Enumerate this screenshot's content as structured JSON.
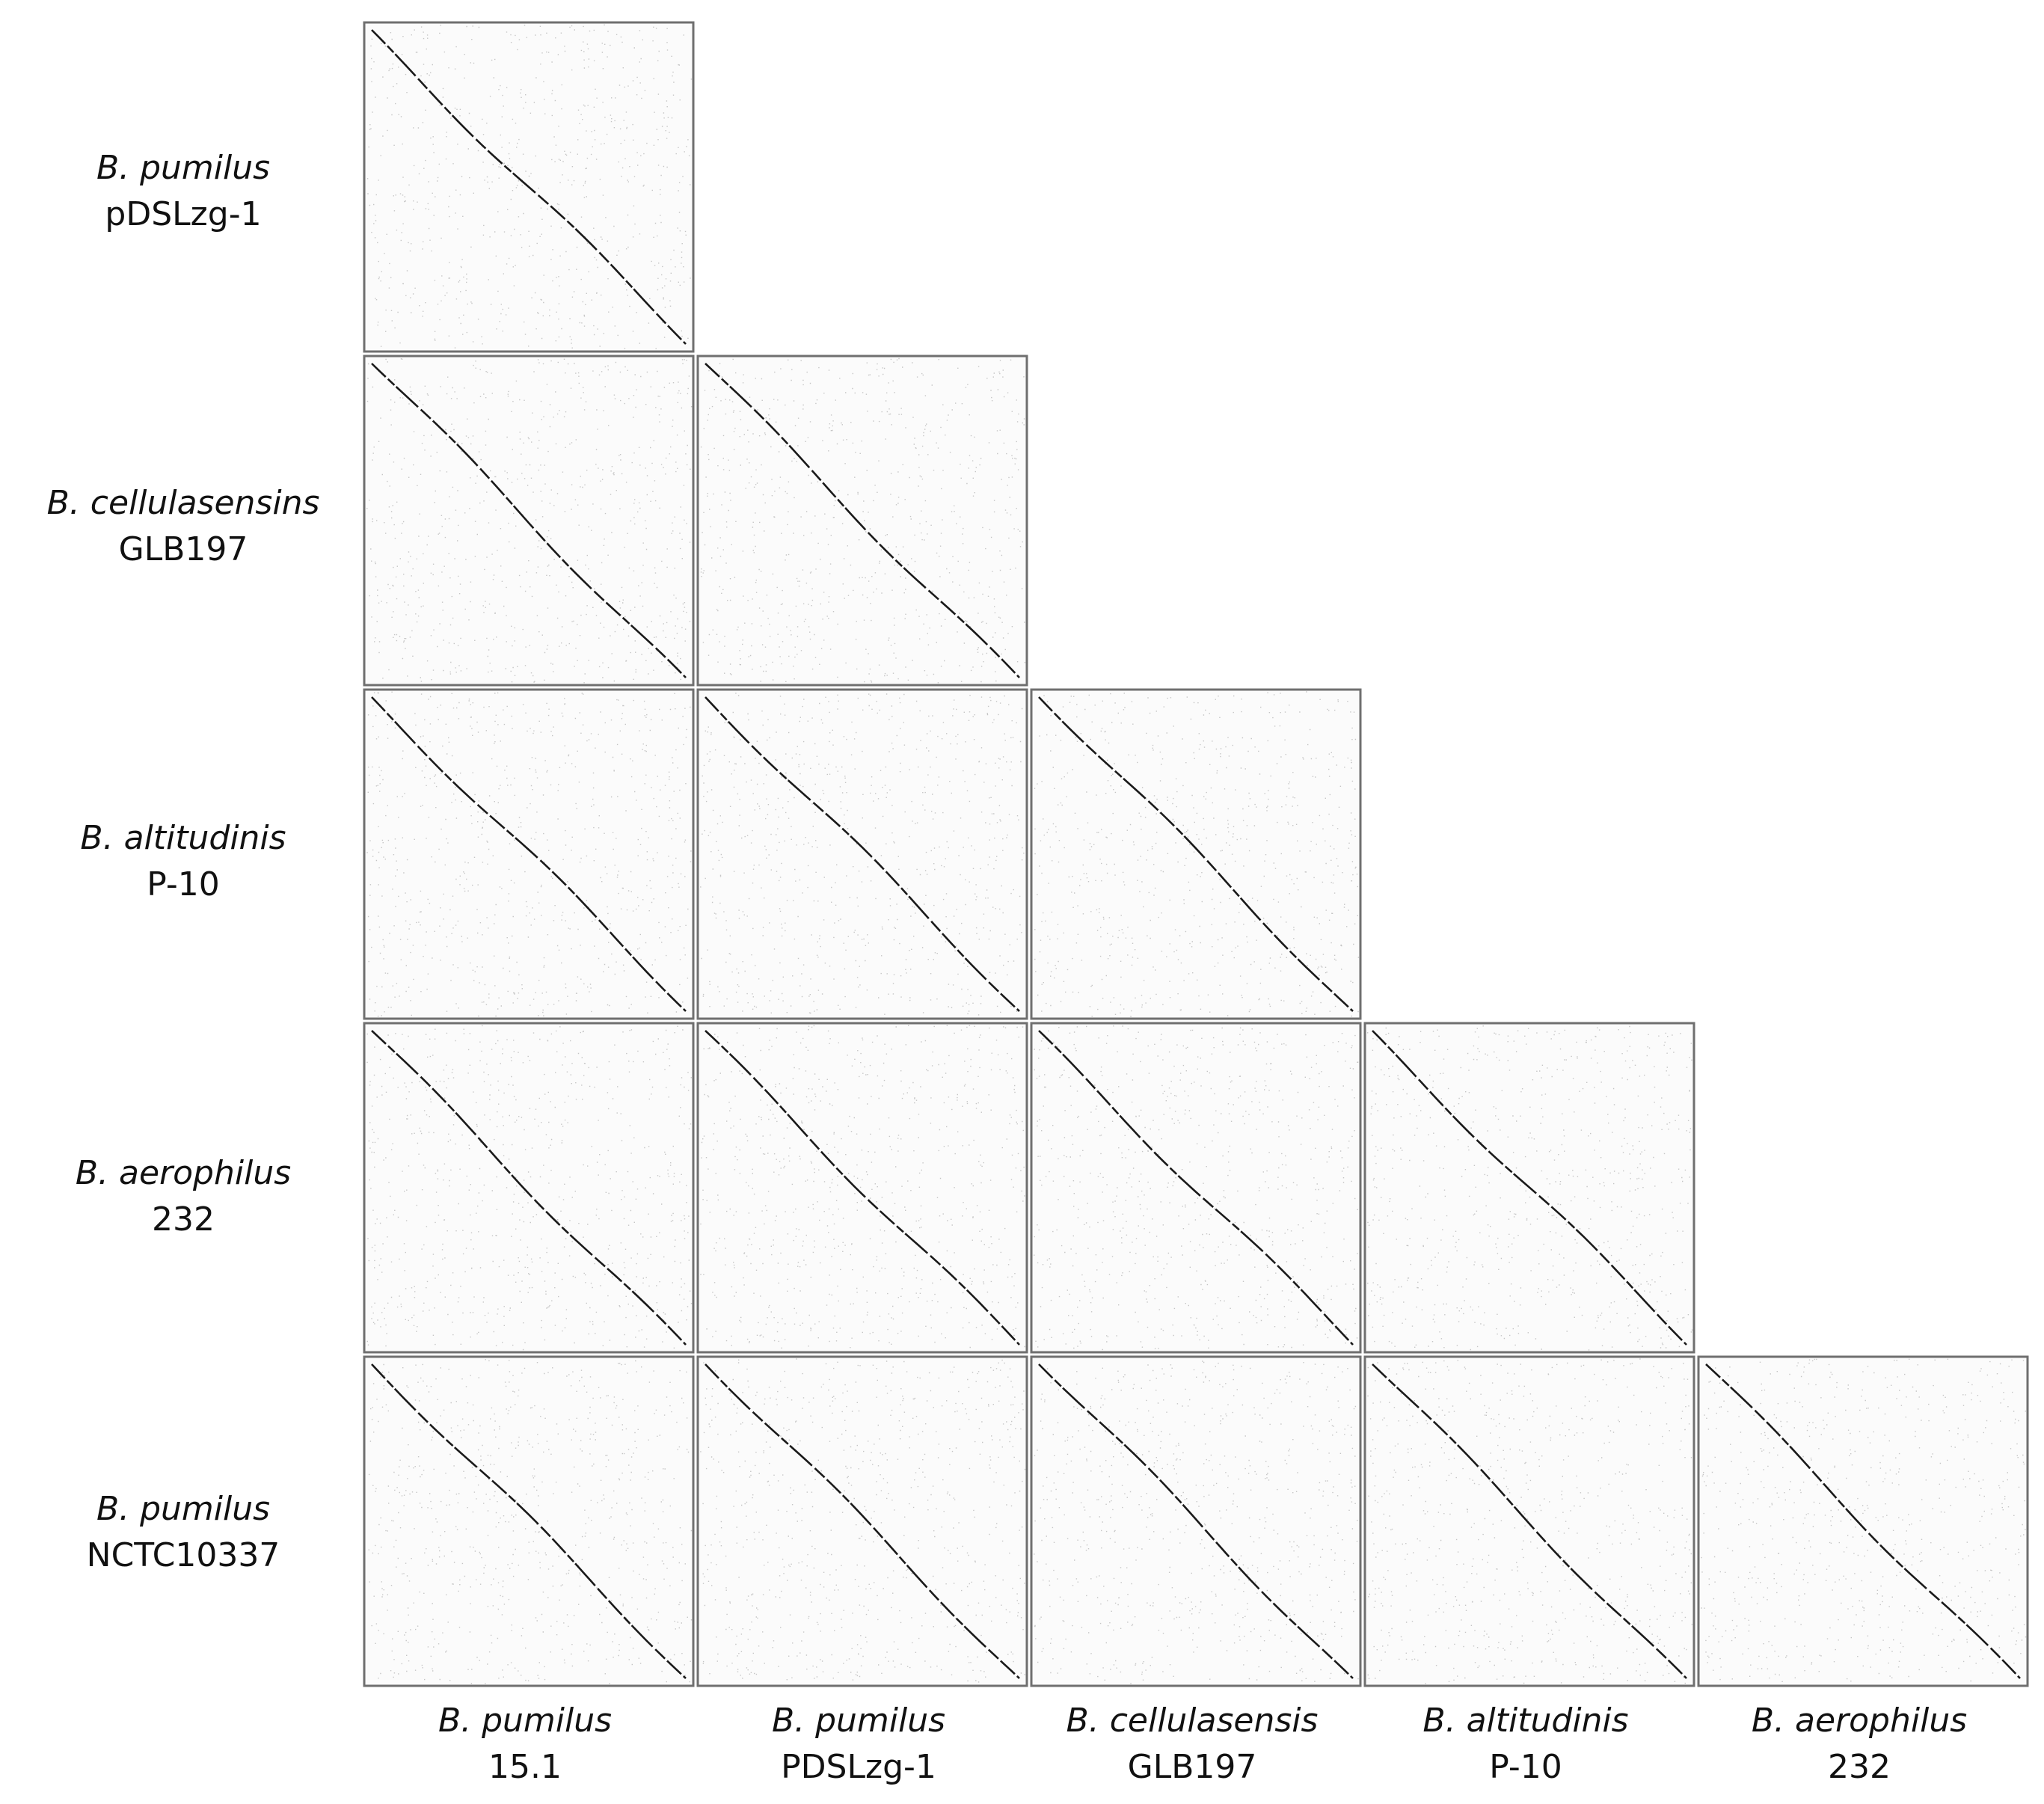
{
  "rows": [
    {
      "species": "B. pumilus",
      "strain": "pDSLzg-1"
    },
    {
      "species": "B. cellulasensins",
      "strain": "GLB197"
    },
    {
      "species": "B. altitudinis",
      "strain": "P-10"
    },
    {
      "species": "B. aerophilus",
      "strain": "232"
    },
    {
      "species": "B. pumilus",
      "strain": "NCTC10337"
    }
  ],
  "columns": [
    {
      "species": "B. pumilus",
      "strain": "15.1"
    },
    {
      "species": "B. pumilus",
      "strain": "PDSLzg-1"
    },
    {
      "species": "B. cellulasensis",
      "strain": "GLB197"
    },
    {
      "species": "B. altitudinis",
      "strain": "P-10"
    },
    {
      "species": "B. aerophilus",
      "strain": "232"
    }
  ],
  "colors": {
    "panel_border": "#6f6f6f",
    "noise": "#9a9a9a",
    "diagonal": "#1a1a1a"
  }
}
